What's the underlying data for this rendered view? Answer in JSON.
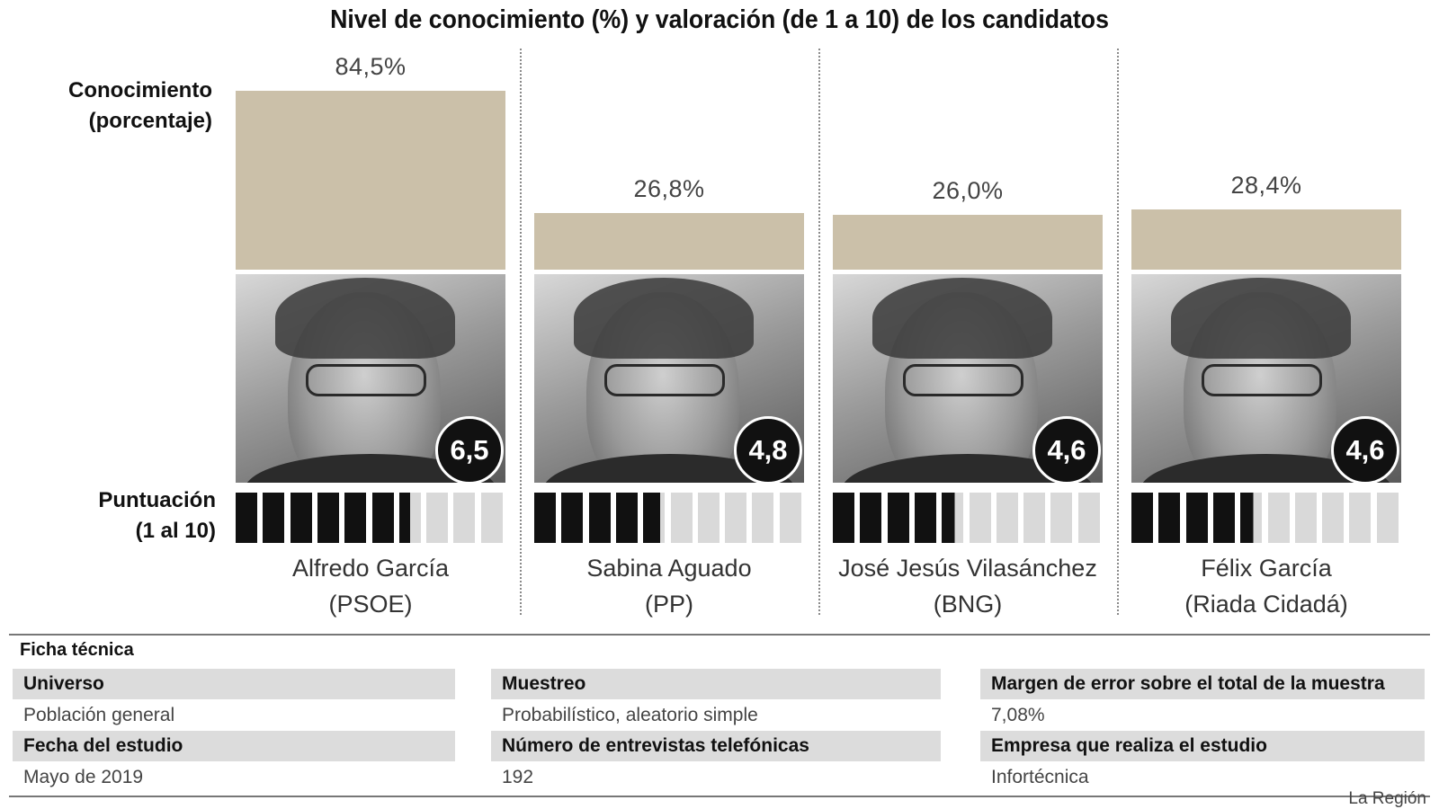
{
  "title": "Nivel de conocimiento (%) y valoración (de 1 a 10) de los candidatos",
  "labels": {
    "conocimiento_line1": "Conocimiento",
    "conocimiento_line2": "(porcentaje)",
    "puntuacion_line1": "Puntuación",
    "puntuacion_line2": "(1 al 10)"
  },
  "colors": {
    "bar": "#cbc0a9",
    "score_filled": "#111111",
    "score_empty": "#d9d9d9"
  },
  "chart_data": {
    "type": "bar",
    "categories": [
      "Alfredo García (PSOE)",
      "Sabina Aguado (PP)",
      "José Jesús Vilasánchez (BNG)",
      "Félix García (Riada Cidadá)"
    ],
    "series": [
      {
        "name": "Conocimiento (porcentaje)",
        "values": [
          84.5,
          26.8,
          26.0,
          28.4
        ]
      },
      {
        "name": "Puntuación (1 al 10)",
        "values": [
          6.5,
          4.8,
          4.6,
          4.6
        ]
      }
    ],
    "ylim": [
      0,
      100
    ],
    "score_max": 10
  },
  "candidates": [
    {
      "name": "Alfredo García",
      "party": "(PSOE)",
      "pct_label": "84,5%",
      "pct": 84.5,
      "score_label": "6,5",
      "score": 6.5,
      "photo_icon": "candidate-photo"
    },
    {
      "name": "Sabina Aguado",
      "party": "(PP)",
      "pct_label": "26,8%",
      "pct": 26.8,
      "score_label": "4,8",
      "score": 4.8,
      "photo_icon": "candidate-photo"
    },
    {
      "name": "José Jesús Vilasánchez",
      "party": "(BNG)",
      "pct_label": "26,0%",
      "pct": 26.0,
      "score_label": "4,6",
      "score": 4.6,
      "photo_icon": "candidate-photo"
    },
    {
      "name": "Félix García",
      "party": "(Riada Cidadá)",
      "pct_label": "28,4%",
      "pct": 28.4,
      "score_label": "4,6",
      "score": 4.6,
      "photo_icon": "candidate-photo"
    }
  ],
  "ficha": {
    "title": "Ficha técnica",
    "universo_h": "Universo",
    "universo_v": "Población general",
    "muestreo_h": "Muestreo",
    "muestreo_v": "Probabilístico, aleatorio simple",
    "margen_h": "Margen de error sobre el total de la muestra",
    "margen_v": "7,08%",
    "fecha_h": "Fecha del estudio",
    "fecha_v": "Mayo de 2019",
    "entrevistas_h": "Número de entrevistas telefónicas",
    "entrevistas_v": "192",
    "empresa_h": "Empresa que realiza el estudio",
    "empresa_v": "Infortécnica"
  },
  "source": "La Región"
}
